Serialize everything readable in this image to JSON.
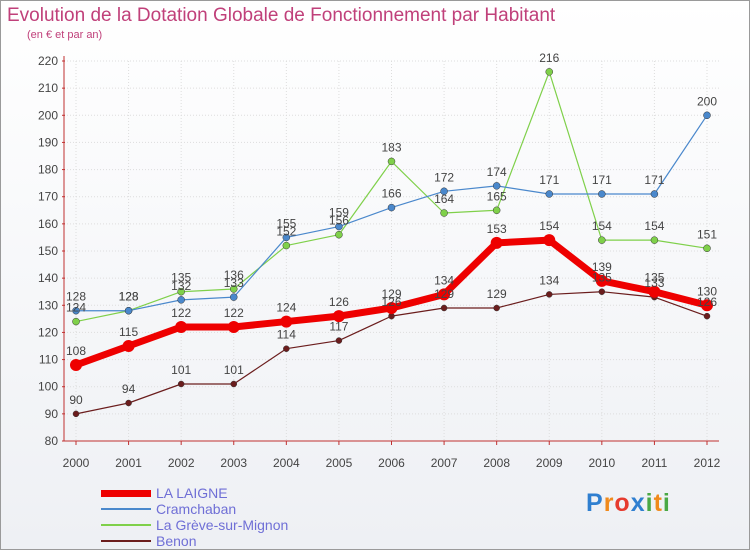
{
  "title": "Evolution de la Dotation Globale de Fonctionnement par Habitant",
  "subtitle": "(en € et par an)",
  "logo": {
    "letters": [
      {
        "ch": "P",
        "color": "#2f7fd0"
      },
      {
        "ch": "r",
        "color": "#f08a1c"
      },
      {
        "ch": "o",
        "color": "#e63b2e"
      },
      {
        "ch": "x",
        "color": "#2f7fd0"
      },
      {
        "ch": "i",
        "color": "#4aa845"
      },
      {
        "ch": "t",
        "color": "#f08a1c"
      },
      {
        "ch": "i",
        "color": "#4aa845"
      }
    ]
  },
  "chart_data": {
    "type": "line",
    "title": "Evolution de la Dotation Globale de Fonctionnement par Habitant",
    "subtitle": "(en € et par an)",
    "categories": [
      "2000",
      "2001",
      "2002",
      "2003",
      "2004",
      "2005",
      "2006",
      "2007",
      "2008",
      "2009",
      "2010",
      "2011",
      "2012"
    ],
    "ylim": [
      80,
      220
    ],
    "yticks": [
      80,
      90,
      100,
      110,
      120,
      130,
      140,
      150,
      160,
      170,
      180,
      190,
      200,
      210,
      220
    ],
    "grid": true,
    "legend_position": "bottom-left",
    "series": [
      {
        "name": "LA LAIGNE",
        "color": "#ee0000",
        "values": [
          108,
          115,
          122,
          122,
          124,
          126,
          129,
          134,
          153,
          154,
          139,
          135,
          130
        ]
      },
      {
        "name": "Cramchaban",
        "color": "#4a88cc",
        "values": [
          128,
          128,
          132,
          133,
          155,
          159,
          166,
          172,
          174,
          171,
          171,
          171,
          200
        ]
      },
      {
        "name": "La Grève-sur-Mignon",
        "color": "#7fd04a",
        "values": [
          124,
          128,
          135,
          136,
          152,
          156,
          183,
          164,
          165,
          216,
          154,
          154,
          151
        ]
      },
      {
        "name": "Benon",
        "color": "#6b1d1d",
        "values": [
          90,
          94,
          101,
          101,
          114,
          117,
          126,
          129,
          129,
          134,
          135,
          133,
          126
        ]
      }
    ]
  }
}
